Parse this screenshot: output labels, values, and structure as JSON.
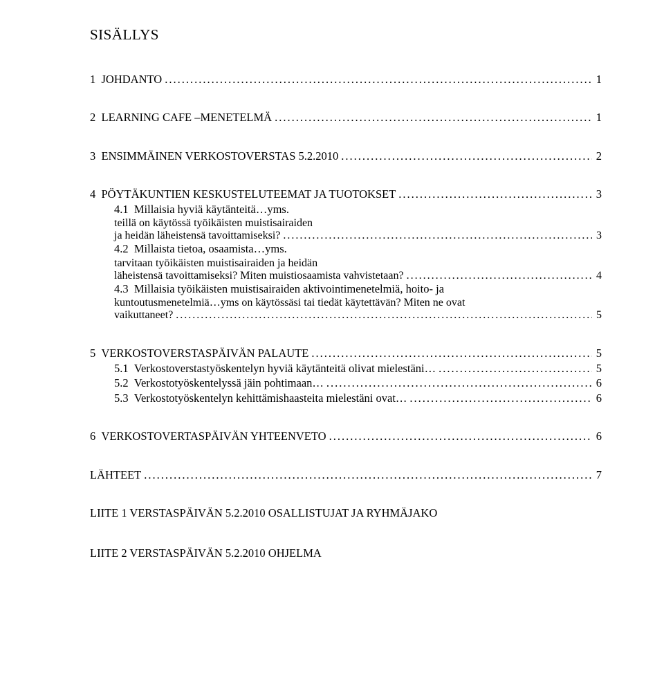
{
  "title": "SISÄLLYS",
  "sections": [
    {
      "num": "1",
      "label": "JOHDANTO",
      "page": "1"
    },
    {
      "num": "2",
      "label": "LEARNING CAFE –MENETELMÄ",
      "page": "1"
    },
    {
      "num": "3",
      "label": "ENSIMMÄINEN VERKOSTOVERSTAS 5.2.2010",
      "page": "2"
    },
    {
      "num": "4",
      "label": "PÖYTÄKUNTIEN KESKUSTELUTEEMAT JA TUOTOKSET",
      "page": "3"
    }
  ],
  "subs4": [
    {
      "num": "4.1",
      "lines": [
        "Millaisia hyviä käytänteitä…yms."
      ],
      "last": "teillä on käytössä työikäisten muistisairaiden ja heidän läheistensä tavoittamiseksi?",
      "page": "3",
      "multiline_last_leader": true
    },
    {
      "num": "4.2",
      "lines": [
        "Millaista tietoa, osaamista…yms."
      ],
      "last": "tarvitaan työikäisten muistisairaiden ja heidän läheistensä tavoittamiseksi? Miten muistiosaamista vahvistetaan?",
      "page": "4",
      "multiline_last_leader": true
    },
    {
      "num": "4.3",
      "lines": [
        "Millaisia työikäisten muistisairaiden aktivointimenetelmiä, hoito- ja",
        "kuntoutusmenetelmiä…yms on käytössäsi tai tiedät käytettävän? Miten ne ovat"
      ],
      "last": "vaikuttaneet?",
      "page": "5"
    }
  ],
  "section5": {
    "num": "5",
    "label": "VERKOSTOVERSTASPÄIVÄN PALAUTE",
    "page": "5"
  },
  "subs5": [
    {
      "num": "5.1",
      "label": "Verkostoverstastyöskentelyn hyviä käytänteitä olivat mielestäni…",
      "page": "5"
    },
    {
      "num": "5.2",
      "label": "Verkostotyöskentelyssä jäin pohtimaan…",
      "page": "6"
    },
    {
      "num": "5.3",
      "label": "Verkostotyöskentelyn kehittämishaasteita mielestäni ovat…",
      "page": "6"
    }
  ],
  "section6": {
    "num": "6",
    "label": "VERKOSTOVERTASPÄIVÄN YHTEENVETO",
    "page": "6"
  },
  "lahteet": {
    "label": "LÄHTEET",
    "page": "7"
  },
  "appendix1": "LIITE 1  VERSTASPÄIVÄN 5.2.2010 OSALLISTUJAT JA RYHMÄJAKO",
  "appendix2": "LIITE 2  VERSTASPÄIVÄN 5.2.2010 OHJELMA"
}
